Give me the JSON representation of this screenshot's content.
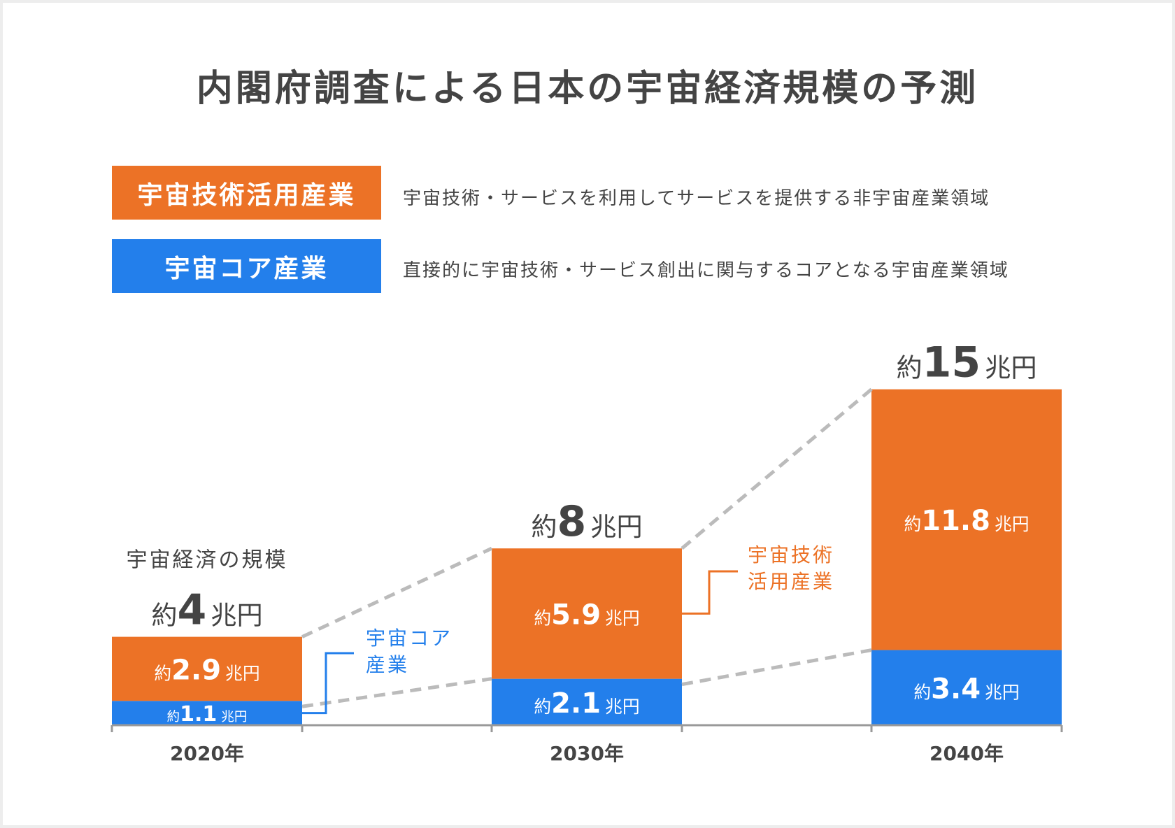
{
  "title": "内閣府調査による日本の宇宙経済規模の予測",
  "legend": [
    {
      "label": "宇宙技術活用産業",
      "description": "宇宙技術・サービスを利用してサービスを提供する非宇宙産業領域",
      "color": "#EC7226"
    },
    {
      "label": "宇宙コア産業",
      "description": "直接的に宇宙技術・サービス創出に関与するコアとなる宇宙産業領域",
      "color": "#237FEB"
    }
  ],
  "chart_data": {
    "type": "bar",
    "stacked": true,
    "unit": "兆円",
    "categories": [
      "2020年",
      "2030年",
      "2040年"
    ],
    "series": [
      {
        "name": "宇宙コア産業",
        "values": [
          1.1,
          2.1,
          3.4
        ],
        "labels": [
          "1.1",
          "2.1",
          "3.4"
        ],
        "color": "#237FEB"
      },
      {
        "name": "宇宙技術活用産業",
        "values": [
          2.9,
          5.9,
          11.8
        ],
        "labels": [
          "2.9",
          "5.9",
          "11.8"
        ],
        "color": "#EC7226"
      }
    ],
    "totals": [
      4,
      8,
      15
    ],
    "total_prefix": "約",
    "value_prefix": "約",
    "first_total_heading": "宇宙経済の規模",
    "callouts": {
      "core": [
        "宇宙コア",
        "産業"
      ],
      "utilization": [
        "宇宙技術",
        "活用産業"
      ]
    },
    "ylim": [
      0,
      15
    ],
    "grid": false
  }
}
